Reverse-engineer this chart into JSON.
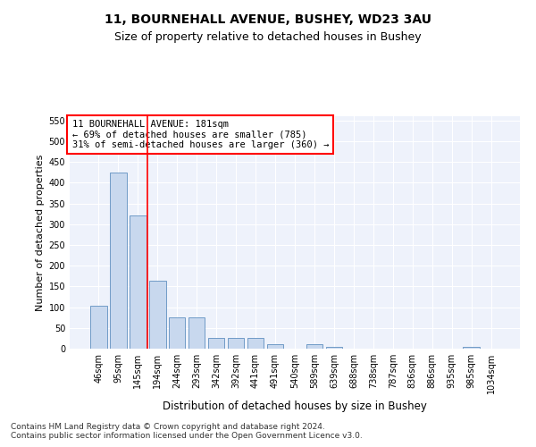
{
  "title": "11, BOURNEHALL AVENUE, BUSHEY, WD23 3AU",
  "subtitle": "Size of property relative to detached houses in Bushey",
  "xlabel": "Distribution of detached houses by size in Bushey",
  "ylabel": "Number of detached properties",
  "bar_labels": [
    "46sqm",
    "95sqm",
    "145sqm",
    "194sqm",
    "244sqm",
    "293sqm",
    "342sqm",
    "392sqm",
    "441sqm",
    "491sqm",
    "540sqm",
    "589sqm",
    "639sqm",
    "688sqm",
    "738sqm",
    "787sqm",
    "836sqm",
    "886sqm",
    "935sqm",
    "985sqm",
    "1034sqm"
  ],
  "bar_values": [
    103,
    425,
    320,
    163,
    75,
    75,
    25,
    25,
    25,
    10,
    0,
    10,
    5,
    0,
    0,
    0,
    0,
    0,
    0,
    5,
    0
  ],
  "bar_color": "#c8d8ee",
  "bar_edge_color": "#6090c0",
  "vline_x": 2.5,
  "vline_color": "red",
  "annotation_line1": "11 BOURNEHALL AVENUE: 181sqm",
  "annotation_line2": "← 69% of detached houses are smaller (785)",
  "annotation_line3": "31% of semi-detached houses are larger (360) →",
  "annotation_box_color": "white",
  "annotation_box_edge_color": "red",
  "ylim": [
    0,
    560
  ],
  "yticks": [
    0,
    50,
    100,
    150,
    200,
    250,
    300,
    350,
    400,
    450,
    500,
    550
  ],
  "footnote": "Contains HM Land Registry data © Crown copyright and database right 2024.\nContains public sector information licensed under the Open Government Licence v3.0.",
  "background_color": "#eef2fb",
  "grid_color": "white",
  "title_fontsize": 10,
  "subtitle_fontsize": 9,
  "xlabel_fontsize": 8.5,
  "ylabel_fontsize": 8,
  "tick_fontsize": 7,
  "annotation_fontsize": 7.5,
  "footnote_fontsize": 6.5
}
